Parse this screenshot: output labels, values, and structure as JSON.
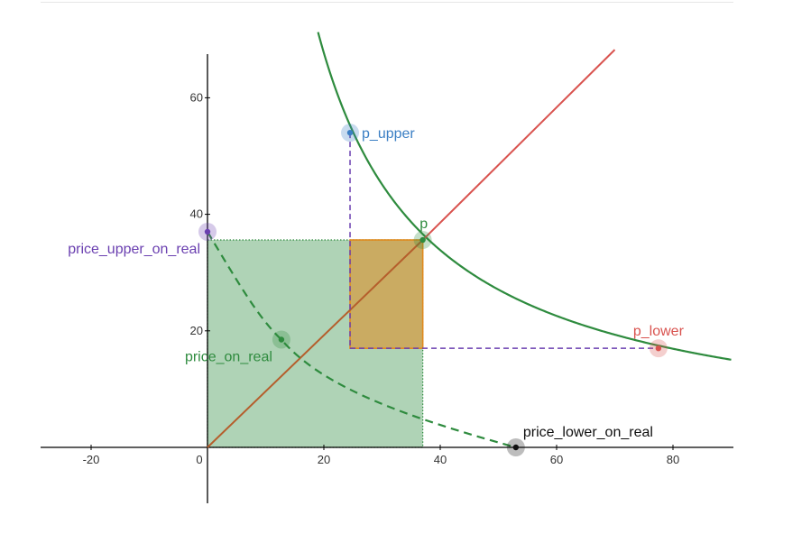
{
  "axes": {
    "x_range": [
      -28,
      90
    ],
    "y_range": [
      -10,
      67
    ],
    "x_ticks": [
      -20,
      0,
      20,
      40,
      60,
      80
    ],
    "y_ticks": [
      20,
      40,
      60
    ],
    "x_tick_labels": [
      "-20",
      "0",
      "20",
      "40",
      "60",
      "80"
    ],
    "y_tick_labels": [
      "20",
      "40",
      "60"
    ],
    "grid": false
  },
  "curves": {
    "hyperbola_k": 1354,
    "diagonal_slope": 0.975
  },
  "points": [
    {
      "id": "p_upper",
      "label": "p_upper",
      "x": 24.5,
      "y": 54,
      "color": "#3b7fc4",
      "label_side": "right"
    },
    {
      "id": "p",
      "label": "p",
      "x": 37,
      "y": 35.6,
      "color": "#2e8b3e",
      "label_side": "above"
    },
    {
      "id": "p_lower",
      "label": "p_lower",
      "x": 77.5,
      "y": 17,
      "color": "#d9534f",
      "label_side": "above"
    },
    {
      "id": "price_upper_on_real",
      "label": "price_upper_on_real",
      "x": 0,
      "y": 37,
      "color": "#6a3fb0",
      "label_side": "left"
    },
    {
      "id": "price_on_real",
      "label": "price_on_real",
      "x": 12.7,
      "y": 18.5,
      "color": "#2e8b3e",
      "label_side": "below-left"
    },
    {
      "id": "price_lower_on_real",
      "label": "price_lower_on_real",
      "x": 53,
      "y": 0,
      "color": "#111111",
      "label_side": "above-right"
    }
  ],
  "regions": {
    "green_rect": {
      "x": [
        0,
        37
      ],
      "y": [
        0,
        35.6
      ],
      "color": "#2e8b3e"
    },
    "orange_rect": {
      "x": [
        24.5,
        37
      ],
      "y": [
        17,
        35.6
      ],
      "color": "#e08a1e"
    }
  },
  "colors": {
    "green": "#2e8b3e",
    "red": "#d9534f",
    "purple_dash": "#6a3fb0",
    "axis": "#000000"
  }
}
